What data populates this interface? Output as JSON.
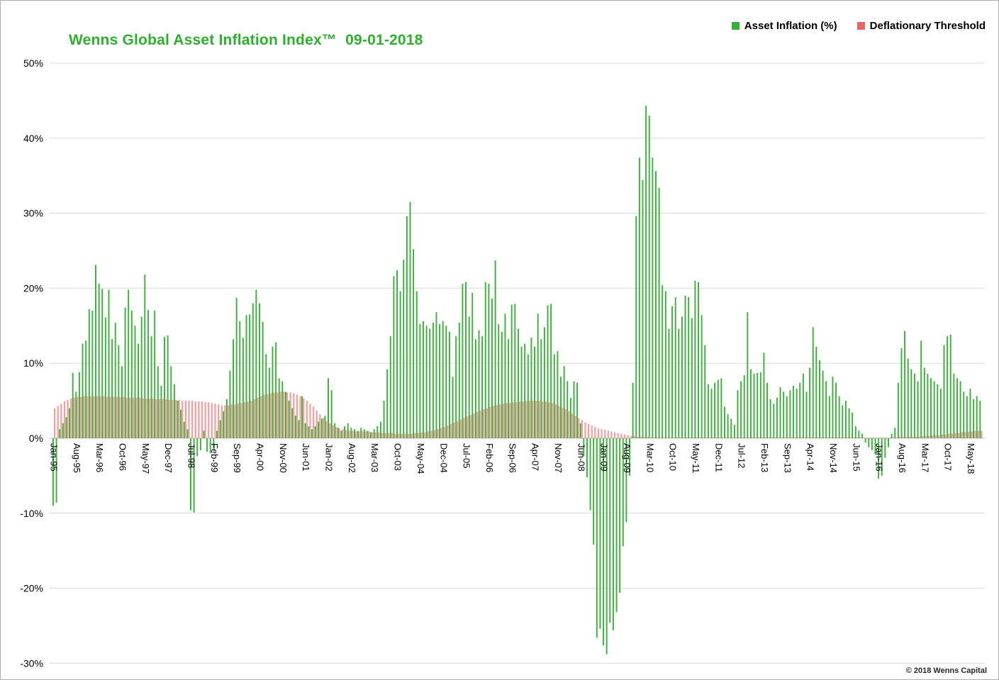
{
  "page": {
    "background": "#ffffff",
    "border_color": "#ababab"
  },
  "header": {
    "title": "Wenns Global Asset Inflation Index™  09-01-2018",
    "title_color": "#2fae2f"
  },
  "legend": {
    "items": [
      {
        "label": "Asset Inflation (%)",
        "color": "#3bae3b"
      },
      {
        "label": "Deflationary Threshold",
        "color": "#e66666"
      }
    ]
  },
  "footer": {
    "copyright": "© 2018 Wenns Capital"
  },
  "chart_data": {
    "type": "bar",
    "title": "Wenns Global Asset Inflation Index™  09-01-2018",
    "x_start": "Jan-95",
    "x_end": "Aug-18",
    "x_frequency": "monthly",
    "x_tick_every": 7,
    "x_tick_labels": [
      "Jan-95",
      "Aug-95",
      "Mar-96",
      "Oct-96",
      "May-97",
      "Dec-97",
      "Jul-98",
      "Feb-99",
      "Sep-99",
      "Apr-00",
      "Nov-00",
      "Jun-01",
      "Jan-02",
      "Aug-02",
      "Mar-03",
      "Oct-03",
      "May-04",
      "Dec-04",
      "Jul-05",
      "Feb-06",
      "Sep-06",
      "Apr-07",
      "Nov-07",
      "Jun-08",
      "Jan-09",
      "Aug-09",
      "Mar-10",
      "Oct-10",
      "May-11",
      "Dec-11",
      "Jul-12",
      "Feb-13",
      "Sep-13",
      "Apr-14",
      "Nov-14",
      "Jun-15",
      "Jan-16",
      "Aug-16",
      "Mar-17",
      "Oct-17",
      "May-18"
    ],
    "y_ticks": [
      50,
      40,
      30,
      20,
      10,
      0,
      -10,
      -20,
      -30
    ],
    "y_tick_labels": [
      "50%",
      "40%",
      "30%",
      "20%",
      "10%",
      "0%",
      "-10%",
      "-20%",
      "-30%"
    ],
    "ylim": [
      -30,
      50
    ],
    "grid": true,
    "gridline_color": "#d9d9d9",
    "legend_position": "top-right",
    "series": [
      {
        "name": "Asset Inflation (%)",
        "color": "#3bae3b",
        "values": [
          -9.0,
          -8.6,
          1.2,
          2.0,
          2.8,
          4.0,
          8.7,
          6.2,
          8.8,
          12.6,
          13.0,
          17.2,
          17.0,
          23.1,
          20.6,
          19.9,
          16.1,
          19.8,
          13.2,
          15.4,
          12.4,
          9.6,
          17.4,
          19.8,
          17.0,
          15.0,
          12.6,
          16.2,
          21.8,
          17.1,
          13.6,
          17.0,
          9.6,
          7.0,
          13.5,
          13.7,
          9.6,
          7.2,
          5.0,
          3.8,
          2.2,
          1.2,
          -9.6,
          -9.9,
          -2.4,
          -1.6,
          1.0,
          -1.8,
          -2.0,
          -1.4,
          1.0,
          2.4,
          3.6,
          5.2,
          9.0,
          13.2,
          18.7,
          15.6,
          13.4,
          16.4,
          16.5,
          18.0,
          19.8,
          18.0,
          15.5,
          11.2,
          9.4,
          12.2,
          12.8,
          8.0,
          7.6,
          6.2,
          5.0,
          4.0,
          3.0,
          2.4,
          5.6,
          2.0,
          1.6,
          1.2,
          1.6,
          2.2,
          2.6,
          3.0,
          8.0,
          6.4,
          2.0,
          1.4,
          1.0,
          1.6,
          2.0,
          1.4,
          1.2,
          1.0,
          1.4,
          1.2,
          1.0,
          0.8,
          1.2,
          1.6,
          2.2,
          5.0,
          9.2,
          13.6,
          21.6,
          22.4,
          19.6,
          23.8,
          29.6,
          31.5,
          25.2,
          19.6,
          15.2,
          15.6,
          15.0,
          14.6,
          15.4,
          16.8,
          15.2,
          15.6,
          15.0,
          14.2,
          8.2,
          13.6,
          15.4,
          20.6,
          20.8,
          16.2,
          19.4,
          13.2,
          14.4,
          13.6,
          20.8,
          20.6,
          18.6,
          23.7,
          15.2,
          14.2,
          16.6,
          13.2,
          17.8,
          17.9,
          14.6,
          12.2,
          12.6,
          11.2,
          13.4,
          12.2,
          16.6,
          13.2,
          14.8,
          17.7,
          17.9,
          11.2,
          11.6,
          8.2,
          9.6,
          7.6,
          5.4,
          7.6,
          7.4,
          2.0,
          -2.4,
          -5.2,
          -9.6,
          -14.2,
          -26.6,
          -25.4,
          -27.6,
          -28.8,
          -24.6,
          -25.6,
          -23.2,
          -20.6,
          -14.4,
          -11.2,
          -5.0,
          7.4,
          29.6,
          37.4,
          34.4,
          44.3,
          43.0,
          37.4,
          35.6,
          33.4,
          20.4,
          19.6,
          14.6,
          17.6,
          18.8,
          14.6,
          16.2,
          19.0,
          18.8,
          16.0,
          21.0,
          20.8,
          16.4,
          12.4,
          7.2,
          6.6,
          7.4,
          7.8,
          8.0,
          4.2,
          3.2,
          2.6,
          1.8,
          6.4,
          7.6,
          8.4,
          16.8,
          9.2,
          8.6,
          8.7,
          8.8,
          11.4,
          7.4,
          5.2,
          4.6,
          5.4,
          6.8,
          6.2,
          5.6,
          6.4,
          7.0,
          6.6,
          7.4,
          8.6,
          6.2,
          9.4,
          14.8,
          12.2,
          10.4,
          9.0,
          7.6,
          5.6,
          8.2,
          7.4,
          5.6,
          4.4,
          5.0,
          4.0,
          3.4,
          1.6,
          1.0,
          0.6,
          -0.6,
          -1.2,
          -1.6,
          -2.2,
          -5.4,
          -5.0,
          -2.6,
          -1.2,
          0.6,
          1.4,
          7.4,
          12.0,
          14.3,
          10.6,
          9.2,
          8.6,
          7.6,
          13.0,
          9.4,
          8.6,
          8.0,
          7.6,
          7.2,
          6.6,
          12.4,
          13.6,
          13.8,
          8.6,
          8.0,
          7.6,
          6.2,
          5.6,
          6.6,
          5.2,
          5.6,
          5.0
        ]
      },
      {
        "name": "Deflationary Threshold",
        "color": "#ef8f8f",
        "values": [
          4.0,
          4.3,
          4.6,
          4.9,
          5.1,
          5.3,
          5.4,
          5.5,
          5.5,
          5.6,
          5.6,
          5.6,
          5.6,
          5.6,
          5.6,
          5.6,
          5.5,
          5.5,
          5.5,
          5.5,
          5.5,
          5.5,
          5.4,
          5.4,
          5.4,
          5.4,
          5.4,
          5.3,
          5.3,
          5.3,
          5.3,
          5.2,
          5.2,
          5.2,
          5.2,
          5.1,
          5.1,
          5.1,
          5.1,
          5.0,
          5.0,
          5.0,
          5.0,
          4.9,
          4.9,
          4.9,
          4.8,
          4.8,
          4.7,
          4.6,
          4.5,
          4.4,
          4.4,
          4.4,
          4.5,
          4.5,
          4.6,
          4.7,
          4.8,
          4.9,
          5.0,
          5.2,
          5.4,
          5.6,
          5.8,
          5.9,
          6.0,
          6.1,
          6.1,
          6.2,
          6.2,
          6.1,
          6.1,
          6.0,
          5.8,
          5.6,
          5.3,
          5.0,
          4.6,
          4.2,
          3.7,
          3.2,
          2.7,
          2.3,
          2.0,
          1.7,
          1.5,
          1.3,
          1.2,
          1.1,
          1.0,
          1.0,
          0.9,
          0.9,
          0.9,
          0.9,
          0.9,
          0.8,
          0.8,
          0.8,
          0.7,
          0.7,
          0.7,
          0.7,
          0.6,
          0.6,
          0.6,
          0.6,
          0.6,
          0.6,
          0.7,
          0.7,
          0.8,
          0.8,
          0.9,
          1.0,
          1.1,
          1.2,
          1.4,
          1.5,
          1.7,
          1.9,
          2.1,
          2.3,
          2.5,
          2.7,
          2.9,
          3.1,
          3.3,
          3.5,
          3.7,
          3.9,
          4.0,
          4.2,
          4.3,
          4.4,
          4.5,
          4.6,
          4.7,
          4.7,
          4.8,
          4.8,
          4.9,
          4.9,
          5.0,
          5.0,
          5.0,
          5.0,
          5.0,
          4.9,
          4.9,
          4.8,
          4.7,
          4.5,
          4.3,
          4.1,
          3.9,
          3.6,
          3.3,
          3.0,
          2.7,
          2.4,
          2.1,
          1.9,
          1.7,
          1.5,
          1.3,
          1.2,
          1.1,
          1.0,
          0.9,
          0.8,
          0.7,
          0.6,
          0.5,
          0.4,
          0.3,
          0.3,
          0.2,
          0.2,
          0.2,
          0.2,
          0.1,
          0.1,
          0.1,
          0.1,
          0.1,
          0.1,
          0.1,
          0.1,
          0.1,
          0.1,
          0.1,
          0.1,
          0.1,
          0.1,
          0.1,
          0.1,
          0.1,
          0.1,
          0.1,
          0.1,
          0.1,
          0.1,
          0.1,
          0.1,
          0.1,
          0.1,
          0.1,
          0.1,
          0.1,
          0.1,
          0.1,
          0.1,
          0.1,
          0.1,
          0.1,
          0.1,
          0.1,
          0.1,
          0.1,
          0.1,
          0.1,
          0.1,
          0.1,
          0.1,
          0.1,
          0.1,
          0.1,
          0.1,
          0.1,
          0.1,
          0.1,
          0.1,
          0.1,
          0.1,
          0.1,
          0.1,
          0.1,
          0.1,
          0.1,
          0.1,
          0.1,
          0.1,
          0.1,
          0.1,
          0.1,
          0.1,
          0.1,
          0.1,
          0.1,
          0.1,
          0.1,
          0.1,
          0.1,
          0.1,
          0.1,
          0.1,
          0.2,
          0.2,
          0.2,
          0.2,
          0.2,
          0.2,
          0.2,
          0.3,
          0.3,
          0.3,
          0.4,
          0.4,
          0.4,
          0.5,
          0.5,
          0.6,
          0.6,
          0.7,
          0.7,
          0.8,
          0.8,
          0.9,
          0.9,
          1.0,
          1.0,
          1.0
        ]
      }
    ]
  }
}
